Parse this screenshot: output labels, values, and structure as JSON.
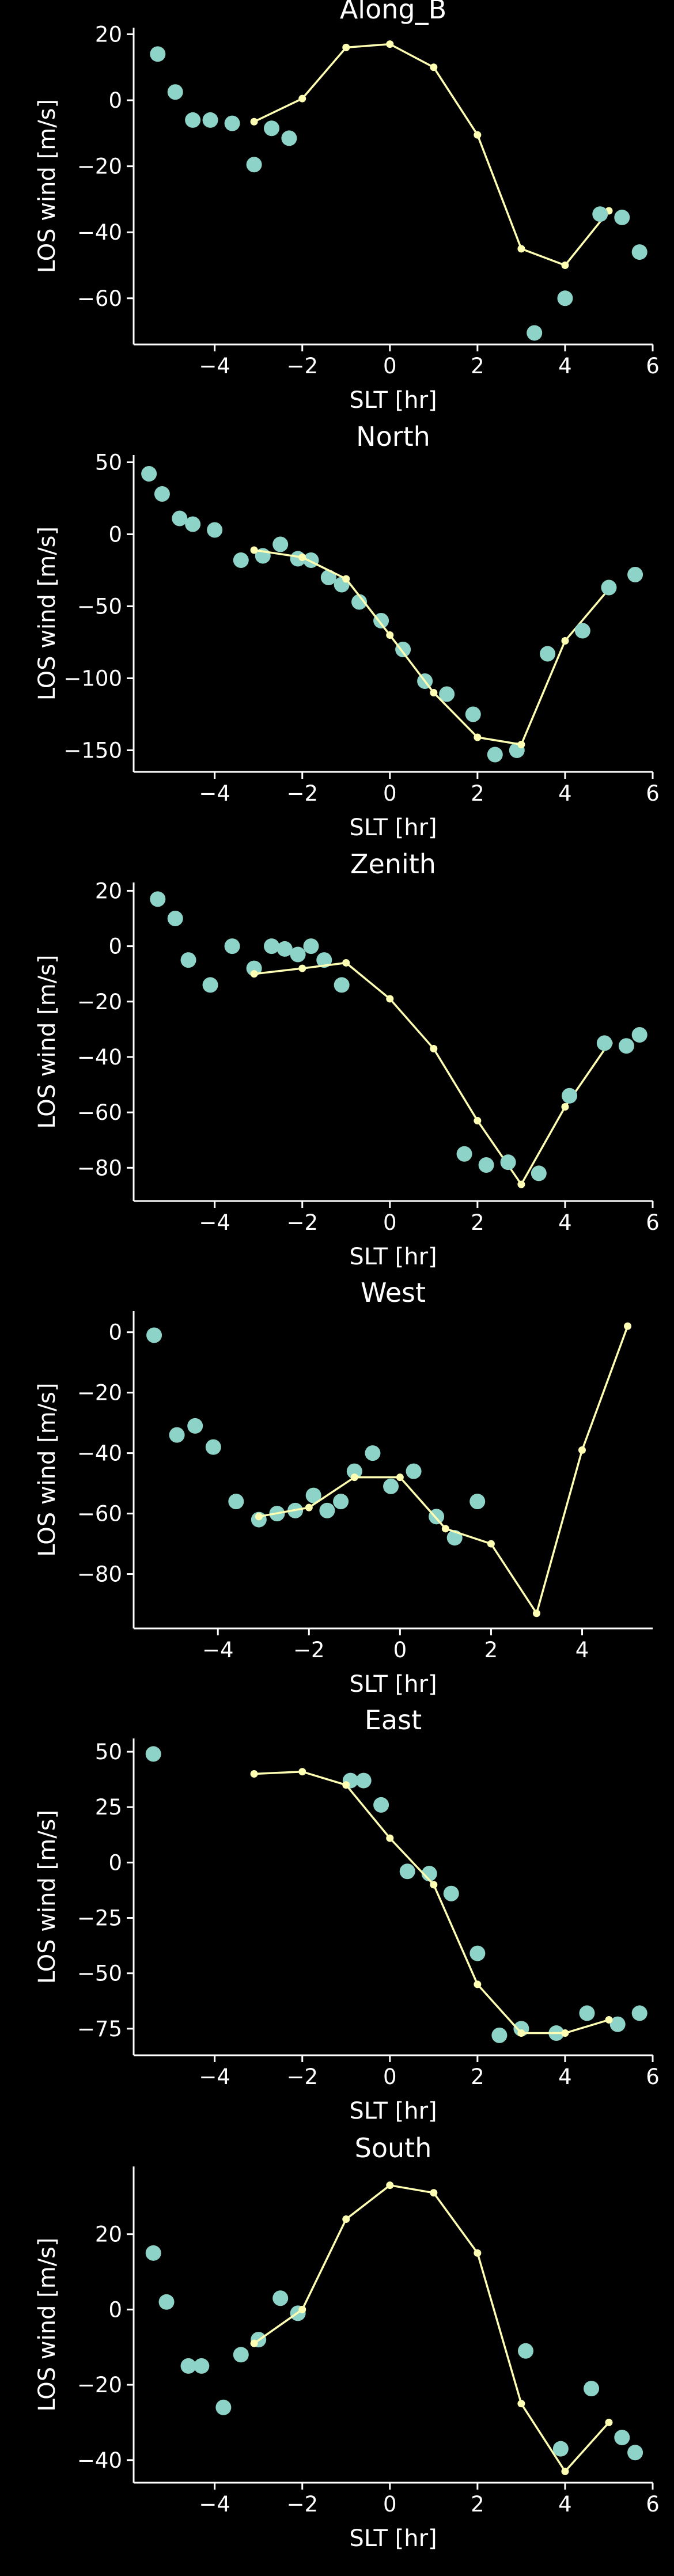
{
  "chart_data": [
    {
      "type": "scatter",
      "title": "Along_B",
      "xlabel": "SLT [hr]",
      "ylabel": "LOS wind [m/s]",
      "xlim": [
        -5.85,
        6.0
      ],
      "ylim": [
        -74,
        22
      ],
      "xticks": [
        -4,
        -2,
        0,
        2,
        4,
        6
      ],
      "yticks": [
        20,
        0,
        -20,
        -40,
        -60
      ],
      "series": [
        {
          "style": "points",
          "x": [
            -5.3,
            -4.9,
            -4.5,
            -4.1,
            -3.6,
            -3.1,
            -2.7,
            -2.3
          ],
          "y": [
            14.0,
            2.5,
            -6.0,
            -6.0,
            -7.0,
            -19.5,
            -8.5,
            -11.5
          ]
        },
        {
          "style": "line",
          "x": [
            -3.1,
            -2.0,
            -1.0,
            0.0,
            1.0,
            2.0,
            3.0,
            4.0,
            5.0
          ],
          "y": [
            -6.5,
            0.5,
            16.0,
            17.0,
            10.0,
            -10.5,
            -45.0,
            -50.0,
            -33.5
          ]
        },
        {
          "style": "points",
          "x": [
            3.3,
            4.0,
            4.8,
            5.3,
            5.7
          ],
          "y": [
            -70.5,
            -60.0,
            -34.5,
            -35.5,
            -46.0
          ]
        }
      ]
    },
    {
      "type": "scatter",
      "title": "North",
      "xlabel": "SLT [hr]",
      "ylabel": "LOS wind [m/s]",
      "xlim": [
        -5.85,
        6.0
      ],
      "ylim": [
        -165,
        55
      ],
      "xticks": [
        -4,
        -2,
        0,
        2,
        4,
        6
      ],
      "yticks": [
        50,
        0,
        -50,
        -100,
        -150
      ],
      "series": [
        {
          "style": "points",
          "x": [
            -5.5,
            -5.2,
            -4.8,
            -4.5,
            -4.0,
            -3.4,
            -2.9,
            -2.5,
            -2.1,
            -1.8,
            -1.4,
            -1.1,
            -0.7,
            -0.2,
            0.3,
            0.8,
            1.3,
            1.9,
            2.4,
            2.9
          ],
          "y": [
            42,
            28,
            11,
            7,
            3,
            -18,
            -15,
            -7,
            -17,
            -18,
            -30,
            -35,
            -47,
            -60,
            -80,
            -102,
            -111,
            -125,
            -153,
            -150
          ]
        },
        {
          "style": "line",
          "x": [
            -3.1,
            -2.0,
            -1.0,
            0.0,
            1.0,
            2.0,
            3.0,
            4.0,
            5.0
          ],
          "y": [
            -11,
            -16,
            -31,
            -70,
            -110,
            -141,
            -146,
            -74,
            -38
          ]
        },
        {
          "style": "points",
          "x": [
            3.6,
            4.4,
            5.0,
            5.6
          ],
          "y": [
            -83,
            -67,
            -37,
            -28
          ]
        }
      ]
    },
    {
      "type": "scatter",
      "title": "Zenith",
      "xlabel": "SLT [hr]",
      "ylabel": "LOS wind [m/s]",
      "xlim": [
        -5.85,
        6.0
      ],
      "ylim": [
        -92,
        23
      ],
      "xticks": [
        -4,
        -2,
        0,
        2,
        4,
        6
      ],
      "yticks": [
        20,
        0,
        -20,
        -40,
        -60,
        -80
      ],
      "series": [
        {
          "style": "points",
          "x": [
            -5.3,
            -4.9,
            -4.6,
            -4.1,
            -3.6,
            -3.1,
            -2.7,
            -2.4,
            -2.1,
            -1.8,
            -1.5,
            -1.1
          ],
          "y": [
            17,
            10,
            -5,
            -14,
            0,
            -8,
            0,
            -1,
            -3,
            0,
            -5,
            -14
          ]
        },
        {
          "style": "line",
          "x": [
            -3.1,
            -2.0,
            -1.0,
            0.0,
            1.0,
            2.0,
            3.0,
            4.0,
            5.0
          ],
          "y": [
            -10,
            -8,
            -6,
            -19,
            -37,
            -63,
            -86,
            -58,
            -35
          ]
        },
        {
          "style": "points",
          "x": [
            1.7,
            2.2,
            2.7,
            3.4,
            4.1,
            4.9,
            5.4,
            5.7
          ],
          "y": [
            -75,
            -79,
            -78,
            -82,
            -54,
            -35,
            -36,
            -32
          ]
        }
      ]
    },
    {
      "type": "scatter",
      "title": "West",
      "xlabel": "SLT [hr]",
      "ylabel": "LOS wind [m/s]",
      "xlim": [
        -5.85,
        5.55
      ],
      "ylim": [
        -98,
        7
      ],
      "xticks": [
        -4,
        -2,
        0,
        2,
        4
      ],
      "yticks": [
        0,
        -20,
        -40,
        -60,
        -80
      ],
      "series": [
        {
          "style": "points",
          "x": [
            -5.4,
            -4.9,
            -4.5,
            -4.1,
            -3.6,
            -3.1,
            -2.7,
            -2.3,
            -1.9,
            -1.6,
            -1.3,
            -1.0,
            -0.6,
            -0.2,
            0.3,
            0.8,
            1.2,
            1.7
          ],
          "y": [
            -1,
            -34,
            -31,
            -38,
            -56,
            -62,
            -60,
            -59,
            -54,
            -59,
            -56,
            -46,
            -40,
            -51,
            -46,
            -61,
            -68,
            -56
          ]
        },
        {
          "style": "line",
          "x": [
            -3.1,
            -2.0,
            -1.0,
            0.0,
            1.0,
            2.0,
            3.0,
            4.0,
            5.0
          ],
          "y": [
            -61,
            -58,
            -48,
            -48,
            -65,
            -70,
            -93,
            -39,
            2
          ]
        }
      ]
    },
    {
      "type": "scatter",
      "title": "East",
      "xlabel": "SLT [hr]",
      "ylabel": "LOS wind [m/s]",
      "xlim": [
        -5.85,
        6.0
      ],
      "ylim": [
        -87,
        56
      ],
      "xticks": [
        -4,
        -2,
        0,
        2,
        4,
        6
      ],
      "yticks": [
        50,
        25,
        0,
        -25,
        -50,
        -75
      ],
      "series": [
        {
          "style": "points",
          "x": [
            -5.4,
            -0.9,
            -0.6,
            -0.2,
            0.4,
            0.9,
            1.4,
            2.0,
            2.5,
            3.0,
            3.8,
            4.5,
            5.2,
            5.7
          ],
          "y": [
            49,
            37,
            37,
            26,
            -4,
            -5,
            -14,
            -41,
            -78,
            -75,
            -77,
            -68,
            -73,
            -68
          ]
        },
        {
          "style": "line",
          "x": [
            -3.1,
            -2.0,
            -1.0,
            0.0,
            1.0,
            2.0,
            3.0,
            4.0,
            5.0
          ],
          "y": [
            40,
            41,
            35,
            11,
            -10,
            -55,
            -77,
            -77,
            -71
          ]
        }
      ]
    },
    {
      "type": "scatter",
      "title": "South",
      "xlabel": "SLT [hr]",
      "ylabel": "LOS wind [m/s]",
      "xlim": [
        -5.85,
        6.0
      ],
      "ylim": [
        -46,
        38
      ],
      "xticks": [
        -4,
        -2,
        0,
        2,
        4,
        6
      ],
      "yticks": [
        20,
        0,
        -20,
        -40
      ],
      "series": [
        {
          "style": "points",
          "x": [
            -5.4,
            -5.1,
            -4.6,
            -4.3,
            -3.8,
            -3.4,
            -3.0,
            -2.5,
            -2.1
          ],
          "y": [
            15,
            2,
            -15,
            -15,
            -26,
            -12,
            -8,
            3,
            -1
          ]
        },
        {
          "style": "line",
          "x": [
            -3.1,
            -2.0,
            -1.0,
            0.0,
            1.0,
            2.0,
            3.0,
            4.0,
            5.0
          ],
          "y": [
            -9,
            0,
            24,
            33,
            31,
            15,
            -25,
            -43,
            -30
          ]
        },
        {
          "style": "points",
          "x": [
            3.1,
            3.9,
            4.6,
            5.3,
            5.6
          ],
          "y": [
            -11,
            -37,
            -21,
            -34,
            -38
          ]
        }
      ]
    }
  ]
}
